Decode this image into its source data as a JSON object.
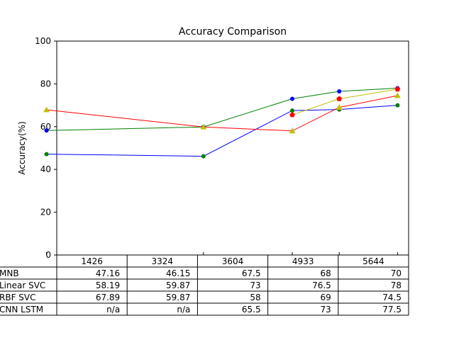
{
  "chart_data": {
    "type": "line",
    "title": "Accuracy Comparison",
    "xlabel": "",
    "ylabel": "Accuracy(%)",
    "ylim": [
      0,
      100
    ],
    "yticks": [
      0,
      20,
      40,
      60,
      80,
      100
    ],
    "x_tick_labels": [
      "1426",
      "3324",
      "3604",
      "4933",
      "5644"
    ],
    "grid": false,
    "series": [
      {
        "name": "MNB",
        "color": "#0000ff",
        "marker": "circle",
        "marker_color": "#008000",
        "values": [
          47.16,
          46.15,
          67.5,
          68,
          70
        ]
      },
      {
        "name": "Linear SVC",
        "color": "#008000",
        "marker": "circle",
        "marker_color": "#0000ff",
        "values": [
          58.19,
          59.87,
          73,
          76.5,
          78
        ]
      },
      {
        "name": "RBF SVC",
        "color": "#ff0000",
        "marker": "triangle",
        "marker_color": "#bfbf00",
        "values": [
          67.89,
          59.87,
          58,
          69,
          74.5
        ]
      },
      {
        "name": "CNN LSTM",
        "color": "#bfbf00",
        "marker": "pentagon",
        "marker_color": "#ff0000",
        "values": [
          null,
          null,
          65.5,
          73,
          77.5
        ]
      }
    ],
    "table": {
      "col_labels": [
        "1426",
        "3324",
        "3604",
        "4933",
        "5644"
      ],
      "rows": [
        {
          "label": "MNB",
          "cells": [
            "47.16",
            "46.15",
            "67.5",
            "68",
            "70"
          ]
        },
        {
          "label": "Linear SVC",
          "cells": [
            "58.19",
            "59.87",
            "73",
            "76.5",
            "78"
          ]
        },
        {
          "label": "RBF SVC",
          "cells": [
            "67.89",
            "59.87",
            "58",
            "69",
            "74.5"
          ]
        },
        {
          "label": "CNN LSTM",
          "cells": [
            "n/a",
            "n/a",
            "65.5",
            "73",
            "77.5"
          ]
        }
      ]
    }
  }
}
